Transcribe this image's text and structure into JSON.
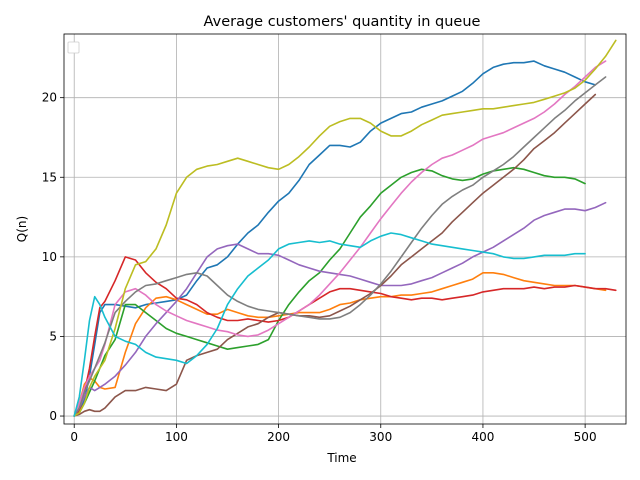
{
  "chart_data": {
    "type": "line",
    "title": "Average customers' quantity in queue",
    "xlabel": "Time",
    "ylabel": "Q(n)",
    "xlim": [
      -10,
      540
    ],
    "ylim": [
      -0.5,
      24
    ],
    "xticks": [
      0,
      100,
      200,
      300,
      400,
      500
    ],
    "yticks": [
      0,
      5,
      10,
      15,
      20
    ],
    "grid": true,
    "legend": "top-left (empty)",
    "series": [
      {
        "color": "#1f77b4",
        "x": [
          0,
          5,
          10,
          15,
          20,
          25,
          30,
          40,
          50,
          60,
          70,
          80,
          90,
          100,
          110,
          120,
          130,
          140,
          150,
          160,
          170,
          180,
          190,
          200,
          210,
          220,
          230,
          240,
          250,
          260,
          270,
          280,
          290,
          300,
          310,
          320,
          330,
          340,
          350,
          360,
          370,
          380,
          390,
          400,
          410,
          420,
          430,
          440,
          450,
          460,
          470,
          480,
          490,
          500,
          510
        ],
        "y": [
          0,
          0.3,
          1.0,
          2.5,
          4.5,
          6.5,
          7.0,
          7.0,
          6.9,
          6.8,
          7.0,
          7.1,
          7.2,
          7.3,
          7.6,
          8.5,
          9.3,
          9.5,
          10.0,
          10.8,
          11.5,
          12.0,
          12.8,
          13.5,
          14.0,
          14.8,
          15.8,
          16.4,
          17.0,
          17.0,
          16.9,
          17.2,
          17.9,
          18.4,
          18.7,
          19.0,
          19.1,
          19.4,
          19.6,
          19.8,
          20.1,
          20.4,
          20.9,
          21.5,
          21.9,
          22.1,
          22.2,
          22.2,
          22.3,
          22.0,
          21.8,
          21.6,
          21.3,
          21.0,
          20.8
        ]
      },
      {
        "color": "#ff7f0e",
        "x": [
          0,
          5,
          10,
          15,
          20,
          25,
          30,
          40,
          50,
          60,
          70,
          80,
          90,
          100,
          110,
          120,
          130,
          140,
          150,
          160,
          170,
          180,
          190,
          200,
          210,
          220,
          230,
          240,
          250,
          260,
          270,
          280,
          290,
          300,
          310,
          320,
          330,
          340,
          350,
          360,
          370,
          380,
          390,
          400,
          410,
          420,
          430,
          440,
          450,
          460,
          470,
          480,
          490,
          500,
          510,
          520
        ],
        "y": [
          0,
          0.8,
          2.0,
          2.4,
          2.2,
          1.8,
          1.7,
          1.8,
          4.0,
          5.8,
          6.8,
          7.4,
          7.5,
          7.3,
          7.0,
          6.7,
          6.4,
          6.4,
          6.7,
          6.5,
          6.3,
          6.2,
          6.2,
          6.3,
          6.4,
          6.5,
          6.5,
          6.5,
          6.7,
          7.0,
          7.1,
          7.3,
          7.4,
          7.5,
          7.5,
          7.6,
          7.6,
          7.7,
          7.8,
          8.0,
          8.2,
          8.4,
          8.6,
          9.0,
          9.0,
          8.9,
          8.7,
          8.5,
          8.4,
          8.3,
          8.2,
          8.2,
          8.2,
          8.1,
          8.0,
          7.9
        ]
      },
      {
        "color": "#2ca02c",
        "x": [
          0,
          5,
          10,
          15,
          20,
          25,
          30,
          40,
          50,
          60,
          70,
          80,
          90,
          100,
          110,
          120,
          130,
          140,
          150,
          160,
          170,
          180,
          190,
          200,
          210,
          220,
          230,
          240,
          250,
          260,
          270,
          280,
          290,
          300,
          310,
          320,
          330,
          340,
          350,
          360,
          370,
          380,
          390,
          400,
          410,
          420,
          430,
          440,
          450,
          460,
          470,
          480,
          490,
          500
        ],
        "y": [
          0,
          0.2,
          0.8,
          1.5,
          2.2,
          3.0,
          3.8,
          4.8,
          7.0,
          7.0,
          6.5,
          6.0,
          5.5,
          5.2,
          5.0,
          4.8,
          4.6,
          4.4,
          4.2,
          4.3,
          4.4,
          4.5,
          4.8,
          6.0,
          7.0,
          7.8,
          8.5,
          9.0,
          9.8,
          10.5,
          11.5,
          12.5,
          13.2,
          14.0,
          14.5,
          15.0,
          15.3,
          15.5,
          15.4,
          15.1,
          14.9,
          14.8,
          14.9,
          15.2,
          15.4,
          15.5,
          15.6,
          15.5,
          15.3,
          15.1,
          15.0,
          15.0,
          14.9,
          14.6
        ]
      },
      {
        "color": "#d62728",
        "x": [
          0,
          5,
          10,
          15,
          20,
          25,
          30,
          40,
          50,
          60,
          70,
          80,
          90,
          100,
          110,
          120,
          130,
          140,
          150,
          160,
          170,
          180,
          190,
          200,
          210,
          220,
          230,
          240,
          250,
          260,
          270,
          280,
          290,
          300,
          310,
          320,
          330,
          340,
          350,
          360,
          370,
          380,
          390,
          400,
          410,
          420,
          430,
          440,
          450,
          460,
          470,
          480,
          490,
          500,
          510,
          520,
          530
        ],
        "y": [
          0,
          0.3,
          1.5,
          3.0,
          5.0,
          6.8,
          7.2,
          8.5,
          10.0,
          9.8,
          9.0,
          8.4,
          8.0,
          7.4,
          7.3,
          7.0,
          6.5,
          6.2,
          6.0,
          6.0,
          6.1,
          6.0,
          5.9,
          6.0,
          6.2,
          6.6,
          7.0,
          7.4,
          7.8,
          8.0,
          8.0,
          7.9,
          7.8,
          7.7,
          7.5,
          7.4,
          7.3,
          7.4,
          7.4,
          7.3,
          7.4,
          7.5,
          7.6,
          7.8,
          7.9,
          8.0,
          8.0,
          8.0,
          8.1,
          8.0,
          8.1,
          8.1,
          8.2,
          8.1,
          8.0,
          8.0,
          7.9
        ]
      },
      {
        "color": "#9467bd",
        "x": [
          0,
          5,
          10,
          15,
          20,
          25,
          30,
          40,
          50,
          60,
          70,
          80,
          90,
          100,
          110,
          120,
          130,
          140,
          150,
          160,
          170,
          180,
          190,
          200,
          210,
          220,
          230,
          240,
          250,
          260,
          270,
          280,
          290,
          300,
          310,
          320,
          330,
          340,
          350,
          360,
          370,
          380,
          390,
          400,
          410,
          420,
          430,
          440,
          450,
          460,
          470,
          480,
          490,
          500,
          510,
          520
        ],
        "y": [
          0,
          0.5,
          1.2,
          1.8,
          1.6,
          1.8,
          2.0,
          2.5,
          3.2,
          4.0,
          5.0,
          5.8,
          6.5,
          7.2,
          8.0,
          9.0,
          10.0,
          10.5,
          10.7,
          10.8,
          10.5,
          10.2,
          10.2,
          10.1,
          9.8,
          9.5,
          9.3,
          9.1,
          9.0,
          8.9,
          8.8,
          8.6,
          8.4,
          8.2,
          8.2,
          8.2,
          8.3,
          8.5,
          8.7,
          9.0,
          9.3,
          9.6,
          10.0,
          10.3,
          10.6,
          11.0,
          11.4,
          11.8,
          12.3,
          12.6,
          12.8,
          13.0,
          13.0,
          12.9,
          13.1,
          13.4
        ]
      },
      {
        "color": "#8c564b",
        "x": [
          0,
          5,
          10,
          15,
          20,
          25,
          30,
          40,
          50,
          60,
          70,
          80,
          90,
          100,
          110,
          120,
          130,
          140,
          150,
          160,
          170,
          180,
          190,
          200,
          210,
          220,
          230,
          240,
          250,
          260,
          270,
          280,
          290,
          300,
          310,
          320,
          330,
          340,
          350,
          360,
          370,
          380,
          390,
          400,
          410,
          420,
          430,
          440,
          450,
          460,
          470,
          480,
          490,
          500,
          510
        ],
        "y": [
          0,
          0.1,
          0.3,
          0.4,
          0.3,
          0.3,
          0.5,
          1.2,
          1.6,
          1.6,
          1.8,
          1.7,
          1.6,
          2.0,
          3.5,
          3.8,
          4.0,
          4.2,
          4.8,
          5.2,
          5.6,
          5.8,
          6.2,
          6.5,
          6.4,
          6.3,
          6.3,
          6.2,
          6.3,
          6.6,
          6.9,
          7.3,
          7.7,
          8.2,
          8.8,
          9.5,
          10.0,
          10.5,
          11.0,
          11.5,
          12.2,
          12.8,
          13.4,
          14.0,
          14.5,
          15.0,
          15.5,
          16.1,
          16.8,
          17.3,
          17.8,
          18.4,
          19.0,
          19.6,
          20.2
        ]
      },
      {
        "color": "#e377c2",
        "x": [
          0,
          5,
          10,
          15,
          20,
          25,
          30,
          40,
          50,
          60,
          70,
          80,
          90,
          100,
          110,
          120,
          130,
          140,
          150,
          160,
          170,
          180,
          190,
          200,
          210,
          220,
          230,
          240,
          250,
          260,
          270,
          280,
          290,
          300,
          310,
          320,
          330,
          340,
          350,
          360,
          370,
          380,
          390,
          400,
          410,
          420,
          430,
          440,
          450,
          460,
          470,
          480,
          490,
          500,
          510,
          520
        ],
        "y": [
          0,
          0.8,
          1.8,
          2.5,
          3.0,
          3.5,
          4.5,
          7.0,
          7.8,
          8.0,
          7.6,
          7.0,
          6.6,
          6.3,
          6.0,
          5.8,
          5.6,
          5.4,
          5.3,
          5.1,
          5.0,
          5.1,
          5.4,
          5.8,
          6.2,
          6.6,
          7.0,
          7.6,
          8.3,
          9.0,
          9.8,
          10.6,
          11.5,
          12.4,
          13.2,
          14.0,
          14.7,
          15.3,
          15.8,
          16.2,
          16.4,
          16.7,
          17.0,
          17.4,
          17.6,
          17.8,
          18.1,
          18.4,
          18.7,
          19.1,
          19.6,
          20.2,
          20.7,
          21.3,
          21.9,
          22.3
        ]
      },
      {
        "color": "#7f7f7f",
        "x": [
          0,
          5,
          10,
          15,
          20,
          25,
          30,
          40,
          50,
          60,
          70,
          80,
          90,
          100,
          110,
          120,
          130,
          140,
          150,
          160,
          170,
          180,
          190,
          200,
          210,
          220,
          230,
          240,
          250,
          260,
          270,
          280,
          290,
          300,
          310,
          320,
          330,
          340,
          350,
          360,
          370,
          380,
          390,
          400,
          410,
          420,
          430,
          440,
          450,
          460,
          470,
          480,
          490,
          500,
          510,
          520
        ],
        "y": [
          0,
          0.5,
          1.5,
          2.2,
          3.0,
          3.8,
          4.6,
          6.5,
          7.2,
          7.8,
          8.2,
          8.3,
          8.5,
          8.7,
          8.9,
          9.0,
          8.8,
          8.2,
          7.6,
          7.2,
          6.9,
          6.7,
          6.6,
          6.5,
          6.4,
          6.3,
          6.2,
          6.1,
          6.1,
          6.2,
          6.5,
          7.0,
          7.6,
          8.3,
          9.1,
          10.0,
          10.9,
          11.8,
          12.6,
          13.3,
          13.8,
          14.2,
          14.5,
          15.0,
          15.4,
          15.8,
          16.3,
          16.9,
          17.5,
          18.1,
          18.7,
          19.2,
          19.8,
          20.3,
          20.8,
          21.3
        ]
      },
      {
        "color": "#bcbd22",
        "x": [
          0,
          5,
          10,
          15,
          20,
          25,
          30,
          40,
          50,
          60,
          70,
          80,
          90,
          100,
          110,
          120,
          130,
          140,
          150,
          160,
          170,
          180,
          190,
          200,
          210,
          220,
          230,
          240,
          250,
          260,
          270,
          280,
          290,
          300,
          310,
          320,
          330,
          340,
          350,
          360,
          370,
          380,
          390,
          400,
          410,
          420,
          430,
          440,
          450,
          460,
          470,
          480,
          490,
          500,
          510,
          520,
          530
        ],
        "y": [
          0,
          0.2,
          0.8,
          1.8,
          2.5,
          3.0,
          3.5,
          5.5,
          8.0,
          9.5,
          9.7,
          10.5,
          12.0,
          14.0,
          15.0,
          15.5,
          15.7,
          15.8,
          16.0,
          16.2,
          16.0,
          15.8,
          15.6,
          15.5,
          15.8,
          16.3,
          16.9,
          17.6,
          18.2,
          18.5,
          18.7,
          18.7,
          18.4,
          17.9,
          17.6,
          17.6,
          17.9,
          18.3,
          18.6,
          18.9,
          19.0,
          19.1,
          19.2,
          19.3,
          19.3,
          19.4,
          19.5,
          19.6,
          19.7,
          19.9,
          20.1,
          20.3,
          20.6,
          21.1,
          21.8,
          22.6,
          23.6
        ]
      },
      {
        "color": "#17becf",
        "x": [
          0,
          5,
          10,
          15,
          20,
          25,
          30,
          40,
          50,
          60,
          70,
          80,
          90,
          100,
          110,
          120,
          130,
          140,
          150,
          160,
          170,
          180,
          190,
          200,
          210,
          220,
          230,
          240,
          250,
          260,
          270,
          280,
          290,
          300,
          310,
          320,
          330,
          340,
          350,
          360,
          370,
          380,
          390,
          400,
          410,
          420,
          430,
          440,
          450,
          460,
          470,
          480,
          490,
          500
        ],
        "y": [
          0,
          1.2,
          3.5,
          6.0,
          7.5,
          7.0,
          6.2,
          5.0,
          4.7,
          4.5,
          4.0,
          3.7,
          3.6,
          3.5,
          3.3,
          3.8,
          4.5,
          5.5,
          7.0,
          8.0,
          8.8,
          9.3,
          9.8,
          10.5,
          10.8,
          10.9,
          11.0,
          10.9,
          11.0,
          10.8,
          10.7,
          10.6,
          11.0,
          11.3,
          11.5,
          11.4,
          11.2,
          11.0,
          10.8,
          10.7,
          10.6,
          10.5,
          10.4,
          10.3,
          10.2,
          10.0,
          9.9,
          9.9,
          10.0,
          10.1,
          10.1,
          10.1,
          10.2,
          10.2
        ]
      }
    ]
  }
}
